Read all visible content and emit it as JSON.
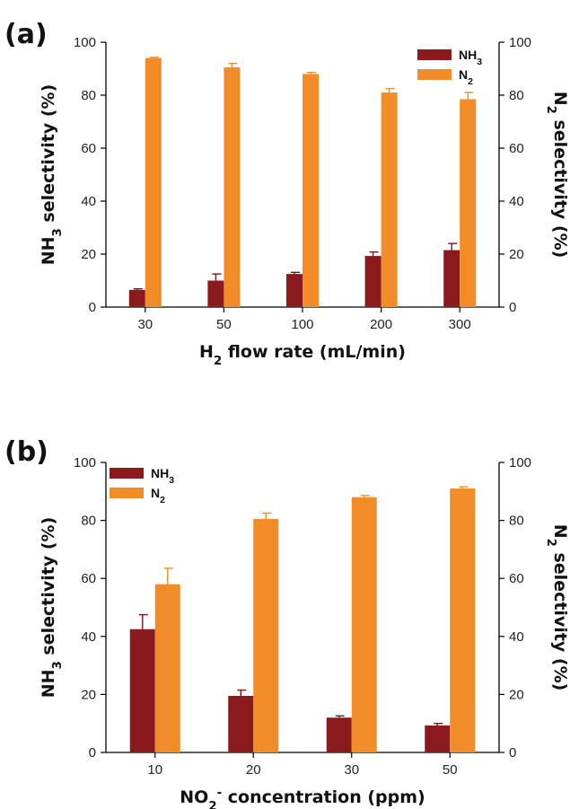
{
  "colors": {
    "nh3": "#8b1a1e",
    "n2": "#f28c28",
    "error": "#7a1418"
  },
  "chart_data": [
    {
      "type": "bar",
      "panel_label": "(a)",
      "categories": [
        "30",
        "50",
        "100",
        "200",
        "300"
      ],
      "series": [
        {
          "name": "NH3",
          "values": [
            6.5,
            10,
            12.5,
            19.3,
            21.5
          ],
          "errors": [
            0.4,
            2.5,
            0.6,
            1.5,
            2.5
          ]
        },
        {
          "name": "N2",
          "values": [
            94,
            90.5,
            88,
            81,
            78.5
          ],
          "errors": [
            0.3,
            1.5,
            0.6,
            1.5,
            2.5
          ]
        }
      ],
      "xlabel": {
        "pre": "H",
        "sub": "2",
        "post": " flow rate (mL/min)"
      },
      "ylabel_left": {
        "pre": "NH",
        "sub": "3",
        "post": " selectivity (%)"
      },
      "ylabel_right": {
        "pre": "N",
        "sub": "2",
        "post": " selectivity (%)"
      },
      "ylim": [
        0,
        100
      ],
      "yticks": [
        "0",
        "20",
        "40",
        "60",
        "80",
        "100"
      ],
      "legend": "top-right"
    },
    {
      "type": "bar",
      "panel_label": "(b)",
      "categories": [
        "10",
        "20",
        "30",
        "50"
      ],
      "series": [
        {
          "name": "NH3",
          "values": [
            42.5,
            19.5,
            12,
            9.3
          ],
          "errors": [
            5,
            2,
            0.6,
            0.7
          ]
        },
        {
          "name": "N2",
          "values": [
            58,
            80.5,
            88,
            91
          ],
          "errors": [
            5.5,
            2,
            0.6,
            0.6
          ]
        }
      ],
      "xlabel": {
        "pre": "NO",
        "sub": "2",
        "sup": "-",
        "post": " concentration (ppm)"
      },
      "ylabel_left": {
        "pre": "NH",
        "sub": "3",
        "post": " selectivity (%)"
      },
      "ylabel_right": {
        "pre": "N",
        "sub": "2",
        "post": " selectivity (%)"
      },
      "ylim": [
        0,
        100
      ],
      "yticks": [
        "0",
        "20",
        "40",
        "60",
        "80",
        "100"
      ],
      "legend": "top-left"
    }
  ]
}
